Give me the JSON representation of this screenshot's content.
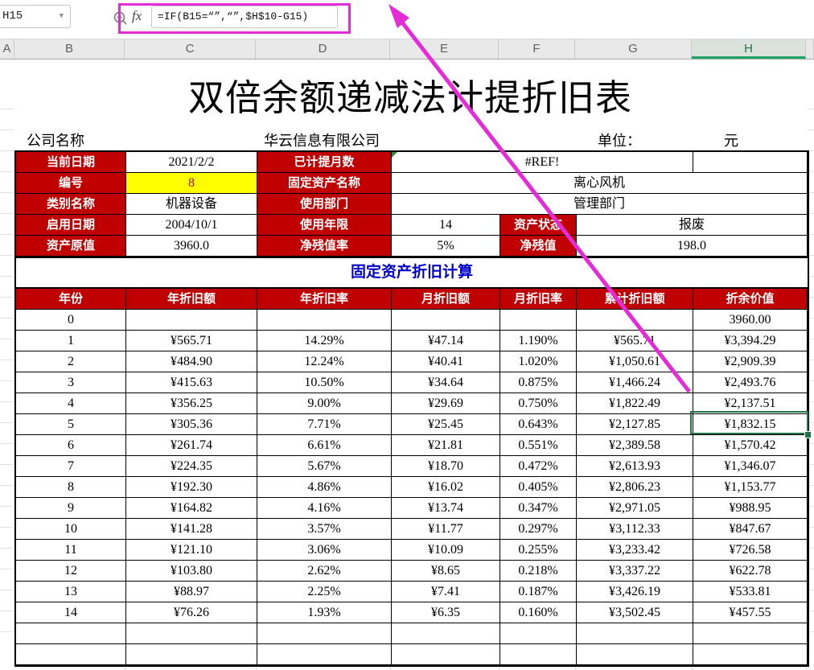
{
  "formula_bar": {
    "name_box": "H15",
    "fx_label": "fx",
    "formula": "=IF(B15=“”,“”,$H$10-G15)"
  },
  "column_headers": [
    "A",
    "B",
    "C",
    "D",
    "E",
    "F",
    "G",
    "H"
  ],
  "selected_column": "H",
  "selected_cell_ref": "H15",
  "colors": {
    "header_red": "#C00000",
    "highlight_yellow": "#FFFF00",
    "section_blue": "#0000CC",
    "selection_green": "#217346",
    "annotation_magenta": "#E42BD6"
  },
  "sheet": {
    "title": "双倍余额递减法计提折旧表",
    "company_row": {
      "label": "公司名称",
      "company": "华云信息有限公司",
      "unit_label": "单位：",
      "unit": "元"
    },
    "info_rows": [
      [
        {
          "t": "当前日期",
          "k": "label"
        },
        {
          "t": "2021/2/2",
          "k": "value"
        },
        {
          "t": "已计提月数",
          "k": "label"
        },
        {
          "t": "#REF!",
          "k": "value",
          "span": 3,
          "err": true
        },
        {
          "t": "",
          "k": "value"
        }
      ],
      [
        {
          "t": "编号",
          "k": "label"
        },
        {
          "t": "8",
          "k": "yellow"
        },
        {
          "t": "固定资产名称",
          "k": "label"
        },
        {
          "t": "离心风机",
          "k": "value",
          "span": 4
        }
      ],
      [
        {
          "t": "类别名称",
          "k": "label"
        },
        {
          "t": "机器设备",
          "k": "value"
        },
        {
          "t": "使用部门",
          "k": "label"
        },
        {
          "t": "管理部门",
          "k": "value",
          "span": 4
        }
      ],
      [
        {
          "t": "启用日期",
          "k": "label"
        },
        {
          "t": "2004/10/1",
          "k": "value"
        },
        {
          "t": "使用年限",
          "k": "label"
        },
        {
          "t": "14",
          "k": "value"
        },
        {
          "t": "资产状态",
          "k": "label"
        },
        {
          "t": "报废",
          "k": "value",
          "span": 2
        }
      ],
      [
        {
          "t": "资产原值",
          "k": "label"
        },
        {
          "t": "3960.0",
          "k": "value"
        },
        {
          "t": "净残值率",
          "k": "label"
        },
        {
          "t": "5%",
          "k": "value"
        },
        {
          "t": "净残值",
          "k": "label"
        },
        {
          "t": "198.0",
          "k": "value",
          "span": 2
        }
      ]
    ],
    "section_title": "固定资产折旧计算",
    "table": {
      "headers": [
        "年份",
        "年折旧额",
        "年折旧率",
        "月折旧额",
        "月折旧率",
        "累计折旧额",
        "折余价值"
      ],
      "rows": [
        [
          "0",
          "",
          "",
          "",
          "",
          "",
          "3960.00"
        ],
        [
          "1",
          "¥565.71",
          "14.29%",
          "¥47.14",
          "1.190%",
          "¥565.71",
          "¥3,394.29"
        ],
        [
          "2",
          "¥484.90",
          "12.24%",
          "¥40.41",
          "1.020%",
          "¥1,050.61",
          "¥2,909.39"
        ],
        [
          "3",
          "¥415.63",
          "10.50%",
          "¥34.64",
          "0.875%",
          "¥1,466.24",
          "¥2,493.76"
        ],
        [
          "4",
          "¥356.25",
          "9.00%",
          "¥29.69",
          "0.750%",
          "¥1,822.49",
          "¥2,137.51"
        ],
        [
          "5",
          "¥305.36",
          "7.71%",
          "¥25.45",
          "0.643%",
          "¥2,127.85",
          "¥1,832.15"
        ],
        [
          "6",
          "¥261.74",
          "6.61%",
          "¥21.81",
          "0.551%",
          "¥2,389.58",
          "¥1,570.42"
        ],
        [
          "7",
          "¥224.35",
          "5.67%",
          "¥18.70",
          "0.472%",
          "¥2,613.93",
          "¥1,346.07"
        ],
        [
          "8",
          "¥192.30",
          "4.86%",
          "¥16.02",
          "0.405%",
          "¥2,806.23",
          "¥1,153.77"
        ],
        [
          "9",
          "¥164.82",
          "4.16%",
          "¥13.74",
          "0.347%",
          "¥2,971.05",
          "¥988.95"
        ],
        [
          "10",
          "¥141.28",
          "3.57%",
          "¥11.77",
          "0.297%",
          "¥3,112.33",
          "¥847.67"
        ],
        [
          "11",
          "¥121.10",
          "3.06%",
          "¥10.09",
          "0.255%",
          "¥3,233.42",
          "¥726.58"
        ],
        [
          "12",
          "¥103.80",
          "2.62%",
          "¥8.65",
          "0.218%",
          "¥3,337.22",
          "¥622.78"
        ],
        [
          "13",
          "¥88.97",
          "2.25%",
          "¥7.41",
          "0.187%",
          "¥3,426.19",
          "¥533.81"
        ],
        [
          "14",
          "¥76.26",
          "1.93%",
          "¥6.35",
          "0.160%",
          "¥3,502.45",
          "¥457.55"
        ]
      ],
      "empty_rows": 2
    }
  }
}
